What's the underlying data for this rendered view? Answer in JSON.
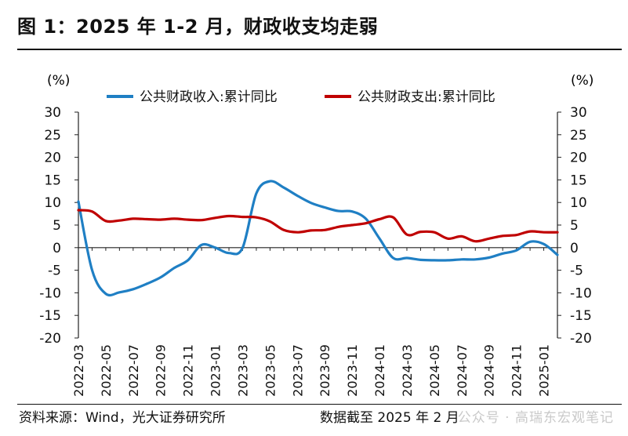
{
  "title": "图 1：2025 年 1-2 月，财政收支均走弱",
  "footer": {
    "source": "资料来源：Wind，光大证券研究所",
    "cutoff": "数据截至 2025 年 2 月",
    "watermark": "公众号 · 高瑞东宏观笔记"
  },
  "chart_data": {
    "type": "line",
    "y_unit_left": "(%)",
    "y_unit_right": "(%)",
    "ylim": [
      -20,
      30
    ],
    "yticks": [
      30,
      25,
      20,
      15,
      10,
      5,
      0,
      -5,
      -10,
      -15,
      -20
    ],
    "xtick_labels": [
      "2022-03",
      "2022-05",
      "2022-07",
      "2022-09",
      "2022-11",
      "2023-01",
      "2023-03",
      "2023-05",
      "2023-07",
      "2023-09",
      "2023-11",
      "2024-01",
      "2024-03",
      "2024-05",
      "2024-07",
      "2024-09",
      "2024-11",
      "2025-01"
    ],
    "x": [
      "2022-03",
      "2022-04",
      "2022-05",
      "2022-06",
      "2022-07",
      "2022-08",
      "2022-09",
      "2022-10",
      "2022-11",
      "2022-12",
      "2023-01",
      "2023-02",
      "2023-03",
      "2023-04",
      "2023-05",
      "2023-06",
      "2023-07",
      "2023-08",
      "2023-09",
      "2023-10",
      "2023-11",
      "2023-12",
      "2024-01",
      "2024-02",
      "2024-03",
      "2024-04",
      "2024-05",
      "2024-06",
      "2024-07",
      "2024-08",
      "2024-09",
      "2024-10",
      "2024-11",
      "2024-12",
      "2025-01",
      "2025-02"
    ],
    "legend_position": "top",
    "grid": false,
    "series": [
      {
        "name": "公共财政收入:累计同比",
        "color": "#1f7fc4",
        "values": [
          10.2,
          -5.0,
          -10.2,
          -9.9,
          -9.2,
          -8.0,
          -6.6,
          -4.5,
          -2.8,
          0.6,
          0.0,
          -1.2,
          0.0,
          12.0,
          14.7,
          13.3,
          11.5,
          9.9,
          8.9,
          8.1,
          8.0,
          6.4,
          2.0,
          -2.3,
          -2.3,
          -2.7,
          -2.8,
          -2.8,
          -2.6,
          -2.6,
          -2.2,
          -1.3,
          -0.6,
          1.3,
          0.8,
          -1.6
        ]
      },
      {
        "name": "公共财政支出:累计同比",
        "color": "#c00000",
        "values": [
          8.3,
          8.0,
          5.9,
          6.0,
          6.4,
          6.3,
          6.2,
          6.4,
          6.2,
          6.1,
          6.6,
          7.0,
          6.8,
          6.7,
          5.8,
          3.9,
          3.4,
          3.8,
          3.9,
          4.6,
          5.0,
          5.4,
          6.3,
          6.7,
          2.9,
          3.5,
          3.4,
          2.0,
          2.5,
          1.4,
          2.0,
          2.6,
          2.8,
          3.6,
          3.4,
          3.4
        ]
      }
    ]
  }
}
